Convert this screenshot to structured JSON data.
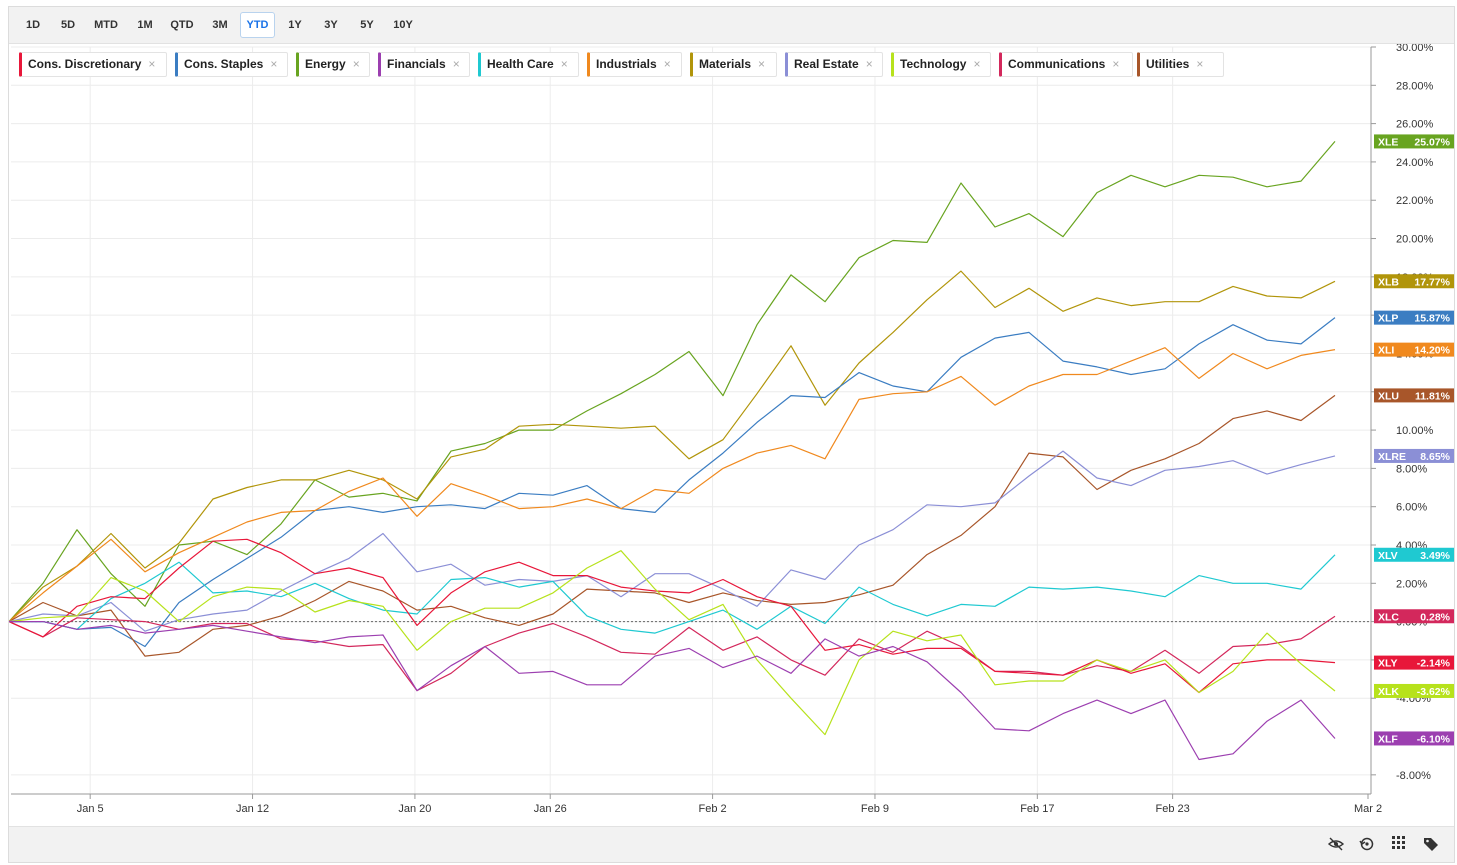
{
  "range_buttons": [
    {
      "label": "1D",
      "active": false
    },
    {
      "label": "5D",
      "active": false
    },
    {
      "label": "MTD",
      "active": false
    },
    {
      "label": "1M",
      "active": false
    },
    {
      "label": "QTD",
      "active": false
    },
    {
      "label": "3M",
      "active": false
    },
    {
      "label": "YTD",
      "active": true
    },
    {
      "label": "1Y",
      "active": false
    },
    {
      "label": "3Y",
      "active": false
    },
    {
      "label": "5Y",
      "active": false
    },
    {
      "label": "10Y",
      "active": false
    }
  ],
  "legend_chips": [
    {
      "label": "Cons. Discretionary",
      "color": "#e8173a"
    },
    {
      "label": "Cons. Staples",
      "color": "#3b7dc2"
    },
    {
      "label": "Energy",
      "color": "#68a420"
    },
    {
      "label": "Financials",
      "color": "#9c3fb0"
    },
    {
      "label": "Health Care",
      "color": "#1fc9d1"
    },
    {
      "label": "Industrials",
      "color": "#f0891e"
    },
    {
      "label": "Materials",
      "color": "#b1950a"
    },
    {
      "label": "Real Estate",
      "color": "#8b8fd6"
    },
    {
      "label": "Technology",
      "color": "#b7e21c"
    },
    {
      "label": "Communications",
      "color": "#d3285c"
    },
    {
      "label": "Utilities",
      "color": "#a8562a"
    }
  ],
  "close_glyph": "×",
  "toolbar_icons": [
    "hide-icon",
    "reset-icon",
    "grid-icon",
    "tags-icon"
  ],
  "chart_data": {
    "type": "line",
    "title": "",
    "xlabel": "",
    "ylabel": "",
    "x_ticks": [
      "Jan 5",
      "Jan 12",
      "Jan 20",
      "Jan 26",
      "Feb 2",
      "Feb 9",
      "Feb 17",
      "Feb 23",
      "Mar 2"
    ],
    "y_ticks": [
      "-8.00%",
      "-4.00%",
      "-2.00%",
      "0.00%",
      "2.00%",
      "4.00%",
      "6.00%",
      "8.00%",
      "10.00%",
      "12.00%",
      "14.00%",
      "16.00%",
      "18.00%",
      "20.00%",
      "22.00%",
      "24.00%",
      "26.00%",
      "28.00%",
      "30.00%"
    ],
    "ylim": [
      -9,
      30
    ],
    "grid": true,
    "baseline": 0,
    "series": [
      {
        "name": "XLE",
        "color": "#68a420",
        "last": "25.07%",
        "values": [
          0.0,
          2.0,
          4.8,
          2.5,
          0.8,
          4.0,
          4.2,
          3.5,
          5.1,
          7.4,
          6.5,
          6.7,
          6.3,
          8.9,
          9.3,
          10.0,
          10.0,
          11.0,
          11.9,
          12.9,
          14.1,
          11.8,
          15.5,
          18.1,
          16.7,
          19.0,
          19.9,
          19.8,
          22.9,
          20.6,
          21.3,
          20.1,
          22.4,
          23.3,
          22.7,
          23.3,
          23.2,
          22.7,
          23.0,
          25.07
        ]
      },
      {
        "name": "XLB",
        "color": "#b1950a",
        "last": "17.77%",
        "values": [
          0.0,
          1.8,
          2.9,
          4.6,
          2.8,
          4.1,
          6.4,
          7.0,
          7.4,
          7.4,
          7.9,
          7.4,
          6.4,
          8.6,
          9.0,
          10.2,
          10.3,
          10.2,
          10.1,
          10.2,
          8.5,
          9.5,
          11.9,
          14.4,
          11.3,
          13.5,
          15.1,
          16.8,
          18.3,
          16.4,
          17.4,
          16.2,
          16.9,
          16.5,
          16.7,
          16.7,
          17.5,
          17.0,
          16.9,
          17.77
        ]
      },
      {
        "name": "XLP",
        "color": "#3b7dc2",
        "last": "15.87%",
        "values": [
          0.0,
          0.0,
          -0.4,
          -0.3,
          -1.3,
          1.0,
          2.2,
          3.3,
          4.4,
          5.8,
          6.0,
          5.7,
          6.0,
          6.1,
          5.9,
          6.7,
          6.6,
          7.1,
          5.9,
          5.7,
          7.4,
          8.8,
          10.4,
          11.8,
          11.7,
          13.0,
          12.3,
          12.0,
          13.8,
          14.8,
          15.1,
          13.6,
          13.3,
          12.9,
          13.2,
          14.5,
          15.5,
          14.7,
          14.5,
          15.87
        ]
      },
      {
        "name": "XLI",
        "color": "#f0891e",
        "last": "14.20%",
        "values": [
          0.0,
          1.5,
          2.9,
          4.3,
          2.6,
          3.6,
          4.4,
          5.2,
          5.7,
          5.8,
          6.8,
          7.5,
          5.5,
          7.2,
          6.6,
          5.9,
          6.0,
          6.4,
          5.9,
          6.9,
          6.7,
          8.0,
          8.8,
          9.2,
          8.5,
          11.6,
          11.9,
          12.0,
          12.8,
          11.3,
          12.3,
          12.9,
          12.9,
          13.6,
          14.3,
          12.7,
          14.0,
          13.2,
          13.9,
          14.2
        ]
      },
      {
        "name": "XLU",
        "color": "#a8562a",
        "last": "11.81%",
        "values": [
          0.0,
          1.0,
          0.3,
          0.6,
          -1.8,
          -1.6,
          -0.4,
          -0.2,
          0.3,
          1.1,
          2.1,
          1.6,
          0.6,
          0.8,
          0.2,
          -0.2,
          0.4,
          1.7,
          1.6,
          1.5,
          1.0,
          1.5,
          1.1,
          0.9,
          1.0,
          1.4,
          1.9,
          3.5,
          4.5,
          6.0,
          8.8,
          8.6,
          6.9,
          7.9,
          8.5,
          9.3,
          10.6,
          11.0,
          10.5,
          11.81
        ]
      },
      {
        "name": "XLRE",
        "color": "#8b8fd6",
        "last": "8.65%",
        "values": [
          0.0,
          0.4,
          0.3,
          1.0,
          -0.5,
          0.1,
          0.4,
          0.6,
          1.6,
          2.5,
          3.3,
          4.6,
          2.6,
          3.0,
          1.9,
          2.2,
          2.1,
          2.4,
          1.3,
          2.5,
          2.5,
          1.7,
          0.8,
          2.7,
          2.2,
          4.0,
          4.8,
          6.1,
          6.0,
          6.2,
          7.6,
          8.9,
          7.5,
          7.1,
          7.9,
          8.1,
          8.4,
          7.7,
          8.2,
          8.65
        ]
      },
      {
        "name": "XLV",
        "color": "#1fc9d1",
        "last": "3.49%",
        "values": [
          0.0,
          0.0,
          -0.4,
          1.2,
          2.0,
          3.1,
          1.5,
          1.6,
          1.3,
          2.0,
          1.2,
          0.6,
          0.4,
          2.2,
          2.3,
          1.8,
          2.1,
          0.3,
          -0.4,
          -0.6,
          0.0,
          0.6,
          -0.4,
          0.8,
          -0.1,
          1.8,
          0.9,
          0.3,
          0.9,
          0.8,
          1.8,
          1.7,
          1.8,
          1.6,
          1.3,
          2.4,
          2.0,
          2.0,
          1.7,
          3.49
        ]
      },
      {
        "name": "XLC",
        "color": "#d3285c",
        "last": "0.28%",
        "values": [
          0.0,
          -0.8,
          0.2,
          0.1,
          0.0,
          -0.4,
          -0.1,
          -0.1,
          -0.9,
          -1.0,
          -1.3,
          -1.2,
          -3.6,
          -2.7,
          -1.3,
          -0.6,
          -0.1,
          -0.8,
          -1.6,
          -1.7,
          -0.3,
          -1.5,
          -0.8,
          -2.0,
          -2.8,
          -0.9,
          -1.6,
          -0.5,
          -1.3,
          -2.6,
          -2.6,
          -2.8,
          -2.3,
          -2.6,
          -1.5,
          -2.7,
          -1.3,
          -1.2,
          -0.9,
          0.28
        ]
      },
      {
        "name": "XLY",
        "color": "#e8173a",
        "last": "-2.14%",
        "values": [
          0.0,
          -0.8,
          0.8,
          1.3,
          1.2,
          2.8,
          4.2,
          4.3,
          3.6,
          2.5,
          2.8,
          2.3,
          -0.2,
          1.5,
          2.6,
          3.1,
          2.4,
          2.4,
          1.8,
          1.6,
          1.5,
          2.2,
          1.3,
          0.8,
          -1.5,
          -1.2,
          -1.7,
          -1.4,
          -1.4,
          -2.6,
          -2.7,
          -2.8,
          -2.0,
          -2.7,
          -2.2,
          -3.7,
          -2.2,
          -2.0,
          -2.0,
          -2.14
        ]
      },
      {
        "name": "XLK",
        "color": "#b7e21c",
        "last": "-3.62%",
        "values": [
          0.0,
          0.2,
          0.3,
          2.3,
          1.6,
          0.0,
          1.3,
          1.8,
          1.7,
          0.5,
          1.1,
          0.8,
          -1.5,
          0.0,
          0.7,
          0.7,
          1.5,
          2.8,
          3.7,
          1.7,
          0.1,
          0.9,
          -2.0,
          -4.0,
          -5.9,
          -2.0,
          -0.5,
          -1.0,
          -0.7,
          -3.3,
          -3.1,
          -3.1,
          -2.0,
          -2.6,
          -2.0,
          -3.7,
          -2.6,
          -0.6,
          -2.2,
          -3.62
        ]
      },
      {
        "name": "XLF",
        "color": "#9c3fb0",
        "last": "-6.10%",
        "values": [
          0.0,
          0.0,
          -0.4,
          -0.2,
          -0.6,
          -0.4,
          -0.2,
          -0.5,
          -0.8,
          -1.1,
          -0.8,
          -0.7,
          -3.6,
          -2.3,
          -1.3,
          -2.7,
          -2.6,
          -3.3,
          -3.3,
          -1.8,
          -1.4,
          -2.4,
          -1.8,
          -2.7,
          -0.9,
          -1.8,
          -1.3,
          -2.1,
          -3.7,
          -5.6,
          -5.7,
          -4.8,
          -4.1,
          -4.8,
          -4.1,
          -7.2,
          -6.9,
          -5.2,
          -4.1,
          -6.1
        ]
      }
    ]
  }
}
